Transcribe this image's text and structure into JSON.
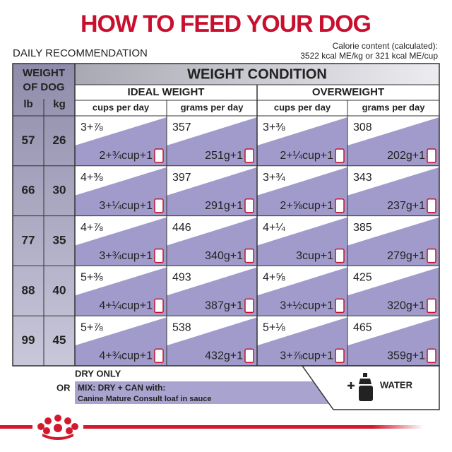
{
  "header": {
    "title": "HOW TO FEED YOUR DOG",
    "subtitle": "DAILY RECOMMENDATION",
    "calorie": [
      "Calorie content (calculated):",
      "3522 kcal ME/kg or 321 kcal ME/cup"
    ]
  },
  "table": {
    "weight_header": [
      "WEIGHT",
      "OF DOG"
    ],
    "units": [
      "lb",
      "kg"
    ],
    "condition_header": "WEIGHT CONDITION",
    "groups": [
      "IDEAL WEIGHT",
      "OVERWEIGHT"
    ],
    "columns": [
      "cups per day",
      "grams per day",
      "cups per day",
      "grams per day"
    ],
    "rows": [
      {
        "lb": "57",
        "kg": "26",
        "cells": [
          {
            "dry": "3+⅞",
            "mix": "2+¾cup+1"
          },
          {
            "dry": "357",
            "mix": "251g+1"
          },
          {
            "dry": "3+⅜",
            "mix": "2+¼cup+1"
          },
          {
            "dry": "308",
            "mix": "202g+1"
          }
        ]
      },
      {
        "lb": "66",
        "kg": "30",
        "cells": [
          {
            "dry": "4+⅜",
            "mix": "3+¼cup+1"
          },
          {
            "dry": "397",
            "mix": "291g+1"
          },
          {
            "dry": "3+¾",
            "mix": "2+⅝cup+1"
          },
          {
            "dry": "343",
            "mix": "237g+1"
          }
        ]
      },
      {
        "lb": "77",
        "kg": "35",
        "cells": [
          {
            "dry": "4+⅞",
            "mix": "3+¾cup+1"
          },
          {
            "dry": "446",
            "mix": "340g+1"
          },
          {
            "dry": "4+¼",
            "mix": "3cup+1"
          },
          {
            "dry": "385",
            "mix": "279g+1"
          }
        ]
      },
      {
        "lb": "88",
        "kg": "40",
        "cells": [
          {
            "dry": "5+⅜",
            "mix": "4+¼cup+1"
          },
          {
            "dry": "493",
            "mix": "387g+1"
          },
          {
            "dry": "4+⅝",
            "mix": "3+½cup+1"
          },
          {
            "dry": "425",
            "mix": "320g+1"
          }
        ]
      },
      {
        "lb": "99",
        "kg": "45",
        "cells": [
          {
            "dry": "5+⅞",
            "mix": "4+¾cup+1"
          },
          {
            "dry": "538",
            "mix": "432g+1"
          },
          {
            "dry": "5+⅛",
            "mix": "3+⅞cup+1"
          },
          {
            "dry": "465",
            "mix": "359g+1"
          }
        ]
      }
    ]
  },
  "legend": {
    "dry": "DRY ONLY",
    "or": "OR",
    "mix": "MIX: DRY + CAN with:",
    "product": "Canine Mature Consult loaf in sauce",
    "water": "WATER"
  }
}
